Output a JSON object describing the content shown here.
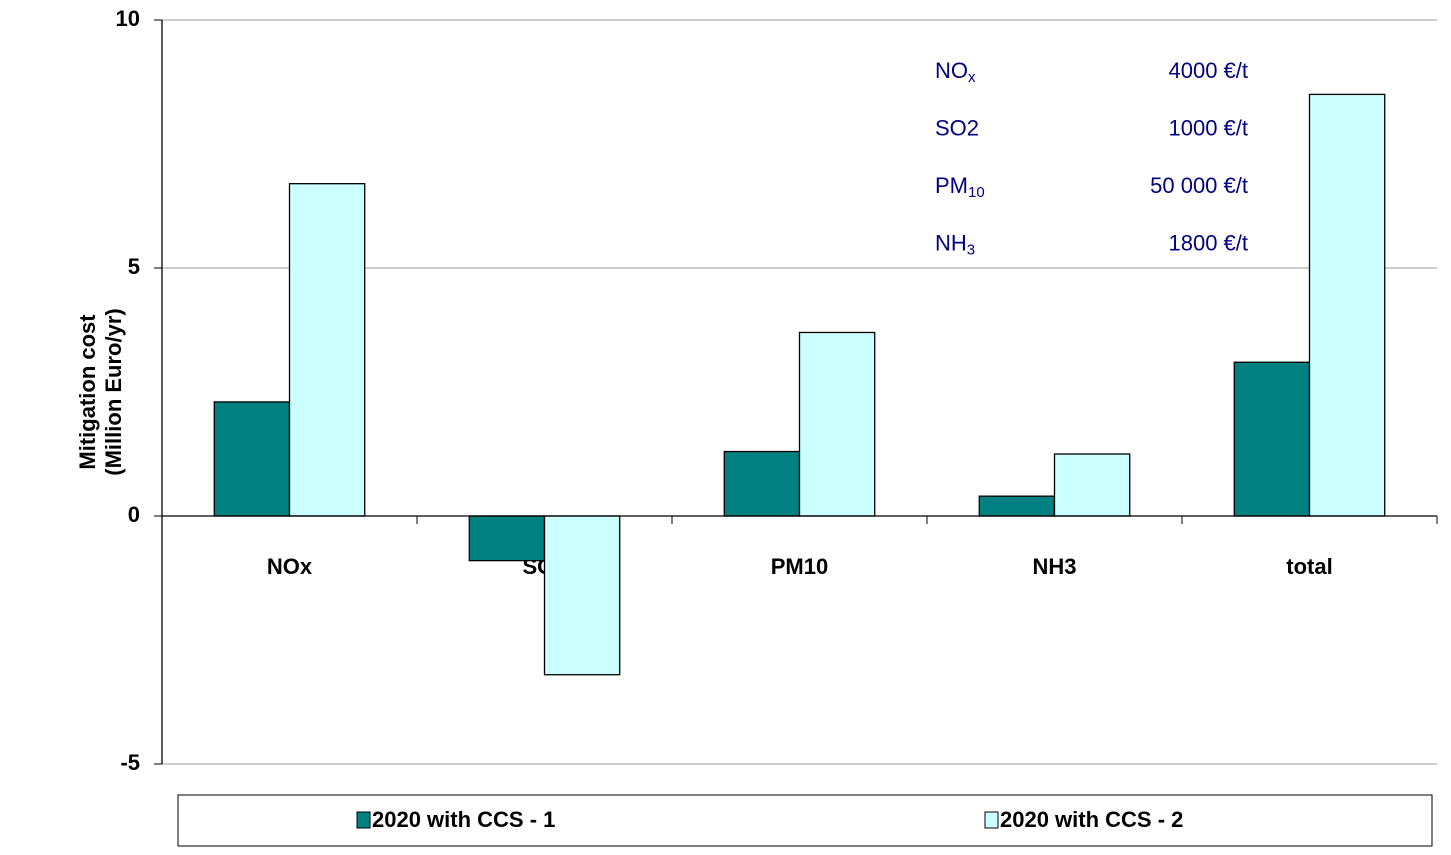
{
  "chart_data": {
    "type": "bar",
    "y_label": [
      "Mitigation cost",
      "(Million Euro/yr)"
    ],
    "categories": [
      "NOx",
      "SO2",
      "PM10",
      "NH3",
      "total"
    ],
    "series": [
      {
        "name": "2020 with CCS - 1",
        "color": "#008080",
        "values": [
          2.3,
          -0.9,
          1.3,
          0.4,
          3.1
        ]
      },
      {
        "name": "2020 with CCS - 2",
        "color": "#ccffff",
        "values": [
          6.7,
          -3.2,
          3.7,
          1.25,
          8.5
        ]
      }
    ],
    "ylim": [
      -5,
      10
    ],
    "yticks": [
      -5,
      0,
      5,
      10
    ],
    "grid": true,
    "legend": "bottom",
    "annotations": [
      {
        "label": "NO",
        "sub": "x",
        "value": "4000 €/t"
      },
      {
        "label": "SO2",
        "value": "1000 €/t"
      },
      {
        "label": "PM",
        "sub": "10",
        "value": "50 000 €/t"
      },
      {
        "label": "NH",
        "sub": "3",
        "value": "1800 €/t"
      }
    ]
  }
}
